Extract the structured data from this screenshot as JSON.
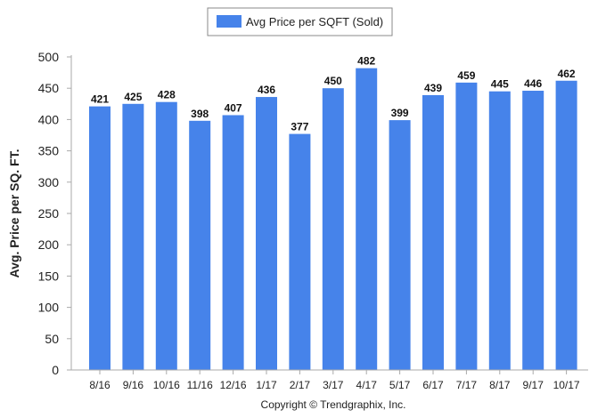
{
  "chart_data": {
    "type": "bar",
    "categories": [
      "8/16",
      "9/16",
      "10/16",
      "11/16",
      "12/16",
      "1/17",
      "2/17",
      "3/17",
      "4/17",
      "5/17",
      "6/17",
      "7/17",
      "8/17",
      "9/17",
      "10/17"
    ],
    "series": [
      {
        "name": "Avg Price per SQFT (Sold)",
        "values": [
          421,
          425,
          428,
          398,
          407,
          436,
          377,
          450,
          482,
          399,
          439,
          459,
          445,
          446,
          462
        ],
        "color": "#4683EA"
      }
    ],
    "data_labels": [
      "421",
      "425",
      "428",
      "398",
      "407",
      "436",
      "377",
      "450",
      "482",
      "399",
      "439",
      "459",
      "445",
      "446",
      "462"
    ],
    "ylabel": "Avg. Price per SQ. FT.",
    "xlabel": "",
    "ylim": [
      0,
      500
    ],
    "yticks": [
      "0",
      "50",
      "100",
      "150",
      "200",
      "250",
      "300",
      "350",
      "400",
      "450",
      "500"
    ],
    "grid": false,
    "legend_position": "top-center"
  },
  "footer": {
    "copyright": "Copyright © Trendgraphix, Inc."
  }
}
